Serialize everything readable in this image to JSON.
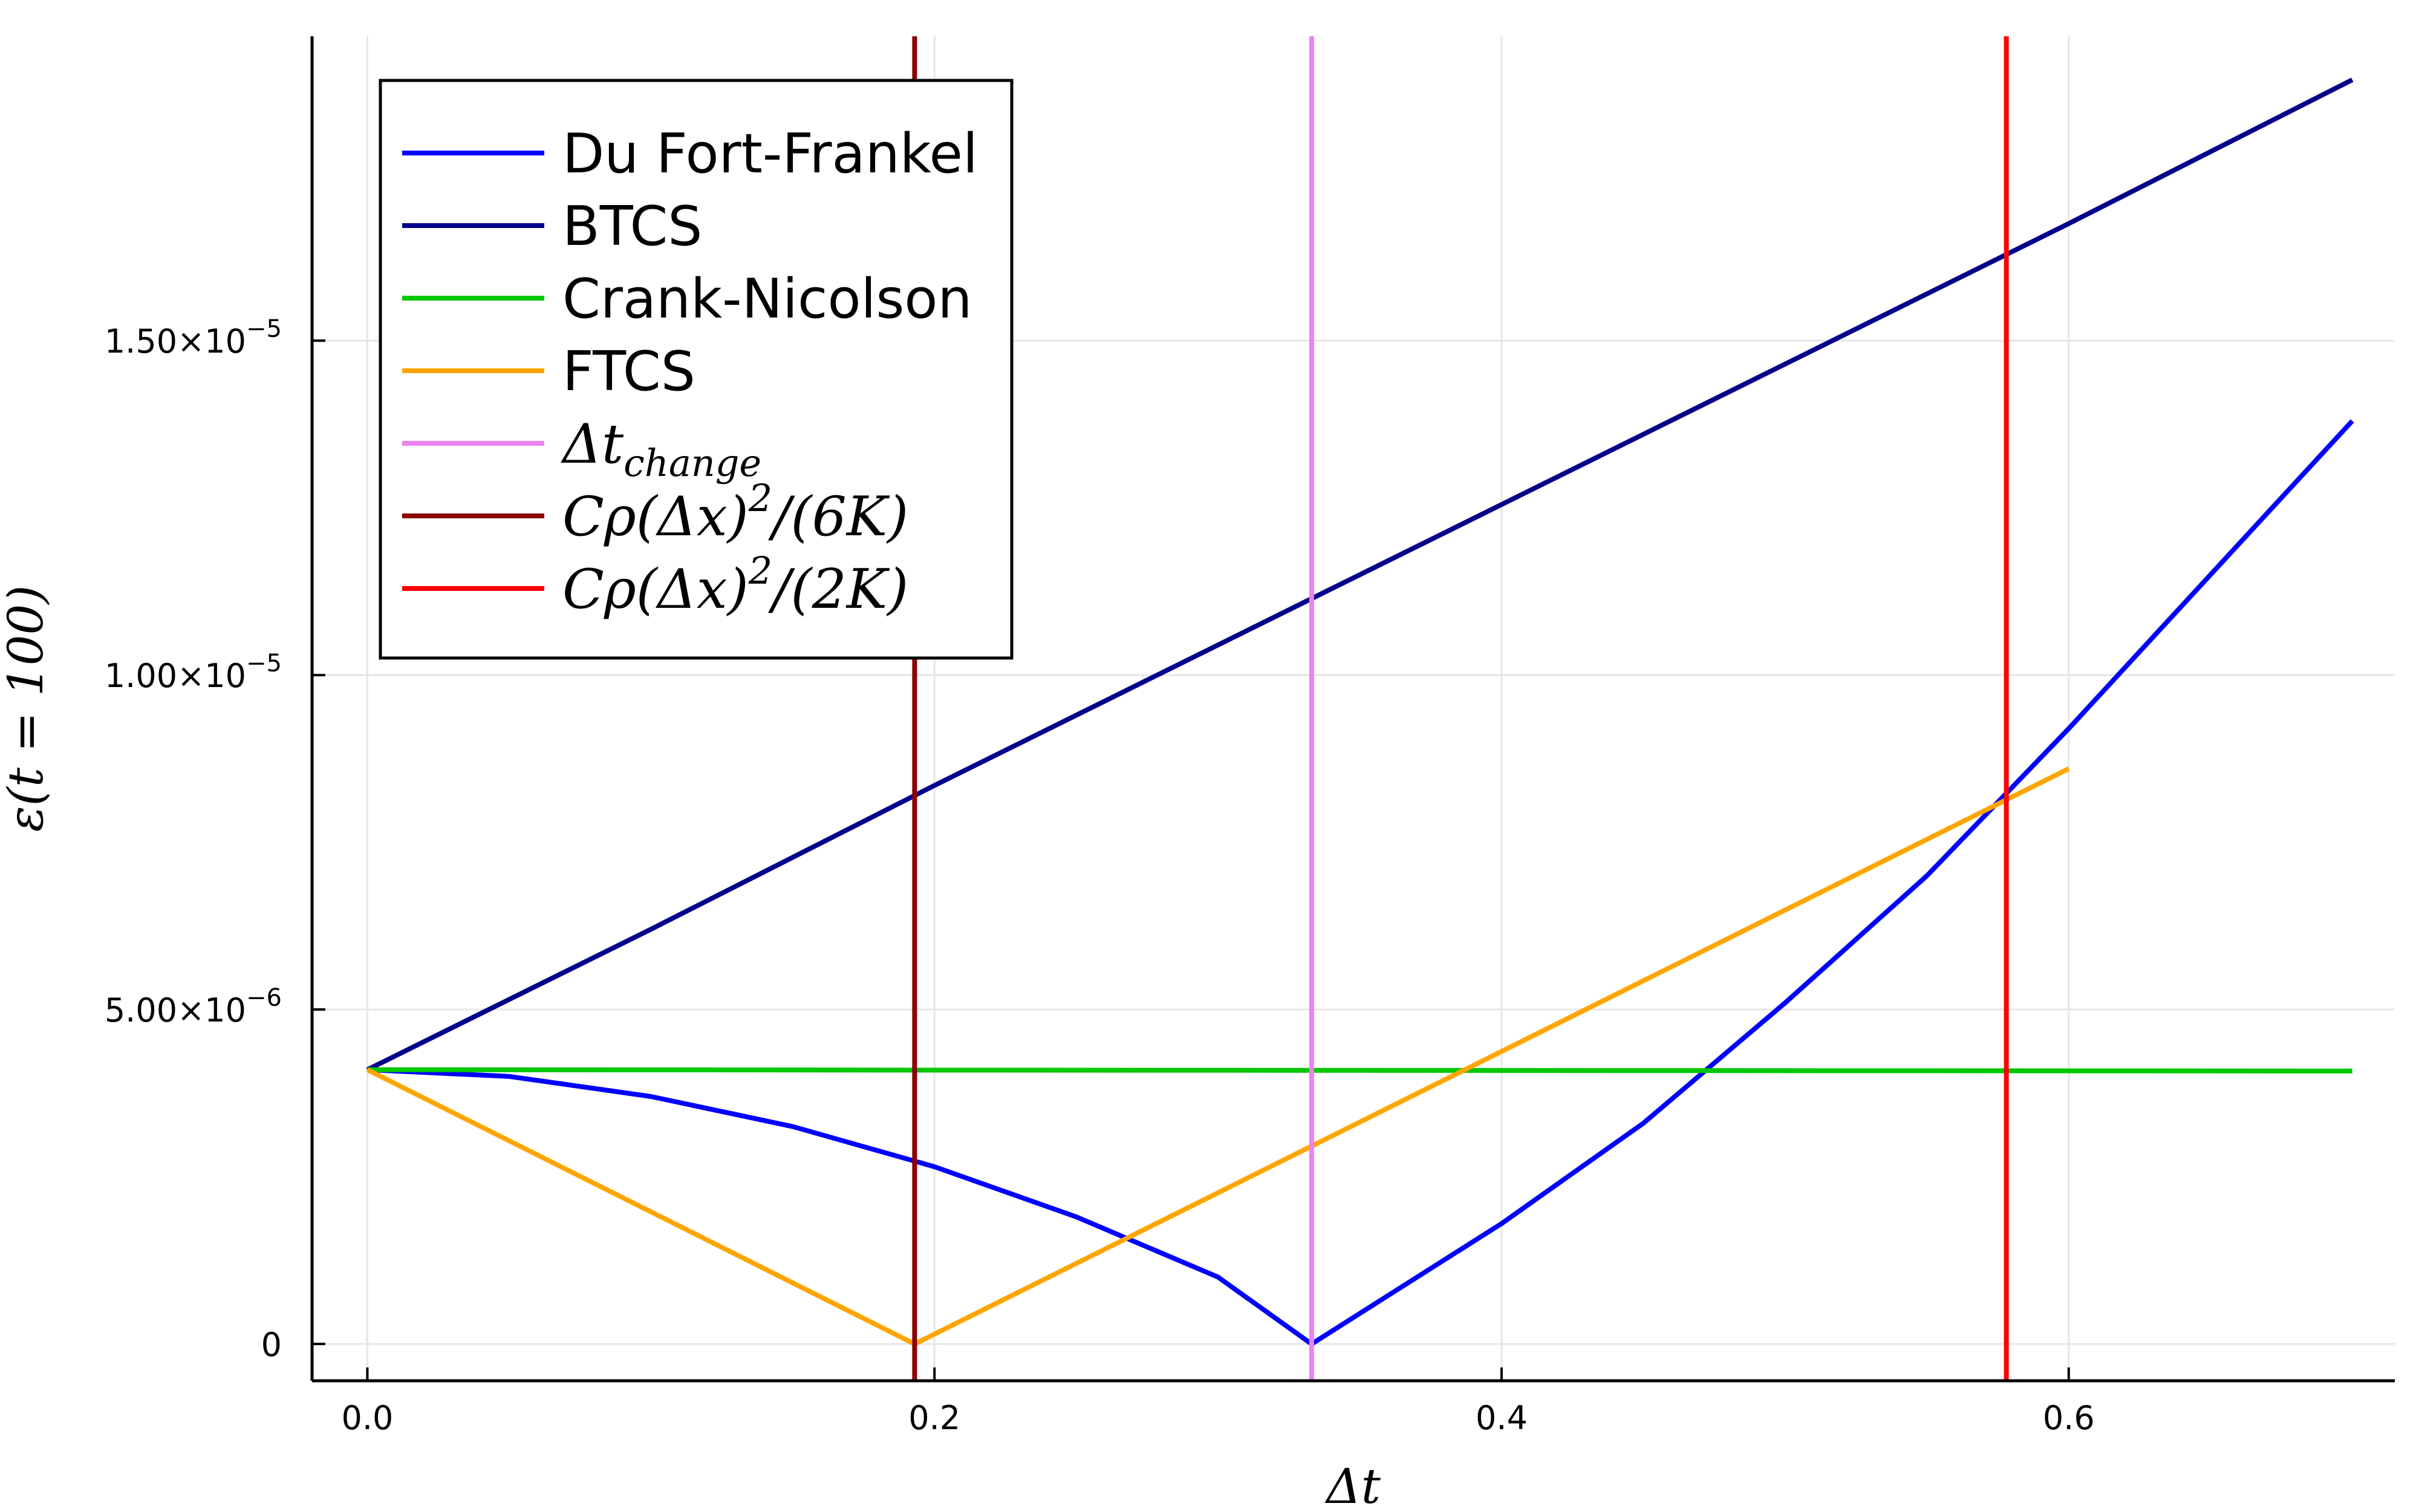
{
  "chart_data": {
    "type": "line",
    "xlabel": "Δt",
    "ylabel": "ε(t = 100)",
    "xlim": [
      -0.0195,
      0.715
    ],
    "ylim": [
      -5.5e-07,
      1.955e-05
    ],
    "grid": true,
    "legend_position": "top-left",
    "x_ticks": [
      {
        "value": 0.0,
        "label": "0.0"
      },
      {
        "value": 0.2,
        "label": "0.2"
      },
      {
        "value": 0.4,
        "label": "0.4"
      },
      {
        "value": 0.6,
        "label": "0.6"
      }
    ],
    "y_ticks": [
      {
        "value": 0,
        "label": "0",
        "exp": ""
      },
      {
        "value": 5e-06,
        "label": "5.00×10",
        "exp": "−6"
      },
      {
        "value": 1e-05,
        "label": "1.00×10",
        "exp": "−5"
      },
      {
        "value": 1.5e-05,
        "label": "1.50×10",
        "exp": "−5"
      }
    ],
    "series": [
      {
        "name": "Du Fort-Frankel",
        "color": "#0000ff",
        "kind": "line",
        "points": [
          [
            0.0,
            4.1e-06
          ],
          [
            0.05,
            4e-06
          ],
          [
            0.1,
            3.7e-06
          ],
          [
            0.15,
            3.25e-06
          ],
          [
            0.2,
            2.65e-06
          ],
          [
            0.25,
            1.9e-06
          ],
          [
            0.3,
            1e-06
          ],
          [
            0.333,
            0.0
          ],
          [
            0.4,
            1.8e-06
          ],
          [
            0.45,
            3.3e-06
          ],
          [
            0.5,
            5.1e-06
          ],
          [
            0.55,
            7e-06
          ],
          [
            0.6,
            9.2e-06
          ],
          [
            0.65,
            1.15e-05
          ],
          [
            0.7,
            1.38e-05
          ]
        ]
      },
      {
        "name": "BTCS",
        "color": "#00008b",
        "kind": "line",
        "points": [
          [
            0.0,
            4.1e-06
          ],
          [
            0.1,
            6.2e-06
          ],
          [
            0.2,
            8.35e-06
          ],
          [
            0.3,
            1.045e-05
          ],
          [
            0.4,
            1.255e-05
          ],
          [
            0.5,
            1.465e-05
          ],
          [
            0.6,
            1.675e-05
          ],
          [
            0.7,
            1.89e-05
          ]
        ]
      },
      {
        "name": "Crank-Nicolson",
        "color": "#00c800",
        "kind": "line",
        "points": [
          [
            0.0,
            4.1e-06
          ],
          [
            0.35,
            4.09e-06
          ],
          [
            0.7,
            4.08e-06
          ]
        ]
      },
      {
        "name": "FTCS",
        "color": "#ffa500",
        "kind": "line",
        "points": [
          [
            0.0,
            4.1e-06
          ],
          [
            0.193,
            0.0
          ],
          [
            0.6,
            8.6e-06
          ]
        ]
      },
      {
        "name": "Δt",
        "subscript": "change",
        "color": "#ee82ee",
        "kind": "vline",
        "x": 0.333
      },
      {
        "name": "Cρ(Δx)",
        "superscript": "2",
        "suffix": "/(6K)",
        "color": "#8b0000",
        "kind": "vline",
        "x": 0.193
      },
      {
        "name": "Cρ(Δx)",
        "superscript": "2",
        "suffix": "/(2K)",
        "color": "#ff0000",
        "kind": "vline",
        "x": 0.578
      }
    ]
  }
}
